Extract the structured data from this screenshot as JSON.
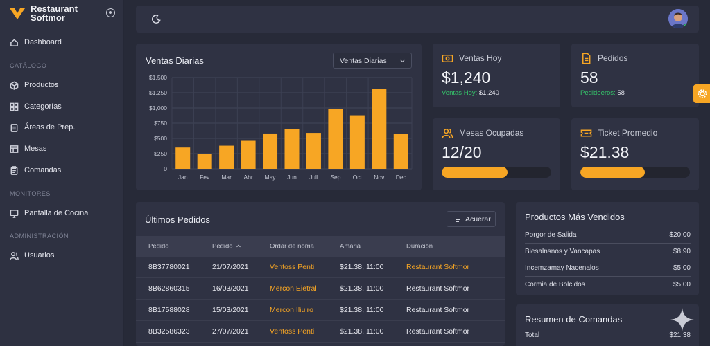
{
  "brand": {
    "line1": "Restaurant",
    "line2": "Softmor",
    "accent": "#f7a624"
  },
  "sidebar": {
    "dashboard": "Dashboard",
    "sections": {
      "catalogo": "CATÁLOGO",
      "monitores": "MONITORES",
      "administracion": "ADMINISTRACIÓN"
    },
    "items": [
      {
        "label": "Productos",
        "icon": "cube-icon"
      },
      {
        "label": "Categorías",
        "icon": "grid-icon"
      },
      {
        "label": "Áreas de Prep.",
        "icon": "clipboard-icon"
      },
      {
        "label": "Mesas",
        "icon": "table-icon"
      },
      {
        "label": "Comandas",
        "icon": "clipboard-list-icon"
      },
      {
        "label": "Pantalla de Cocina",
        "icon": "monitor-icon"
      },
      {
        "label": "Usuarios",
        "icon": "users-icon"
      }
    ]
  },
  "chart_card": {
    "title": "Ventas Diarias",
    "select_value": "Ventas Diarias"
  },
  "chart_data": {
    "type": "bar",
    "categories": [
      "Jan",
      "Fev",
      "Mar",
      "Abr",
      "May",
      "Jun",
      "Jull",
      "Sep",
      "Oct",
      "Nov",
      "Dec"
    ],
    "values": [
      350,
      240,
      380,
      460,
      580,
      650,
      590,
      980,
      880,
      1310,
      570
    ],
    "ylim": [
      0,
      1500
    ],
    "yticks": [
      "0",
      "$250",
      "$500",
      "$750",
      "$1,000",
      "$1,250",
      "$1,500"
    ],
    "grid": true,
    "bar_color": "#f7a624"
  },
  "stats": {
    "ventas": {
      "label": "Ventas Hoy",
      "value": "$1,240",
      "sub_label": "Ventas Hoy:",
      "sub_value": "$1,240"
    },
    "pedidos": {
      "label": "Pedidos",
      "value": "58",
      "sub_label": "Pedidoeros:",
      "sub_value": "58"
    },
    "mesas": {
      "label": "Mesas Ocupadas",
      "value": "12/20",
      "progress": 0.6
    },
    "ticket": {
      "label": "Ticket Promedio",
      "value": "$21.38",
      "progress": 0.59
    }
  },
  "orders": {
    "title": "Últimos Pedidos",
    "filter_label": "Acuerar",
    "headers": [
      "Pedido",
      "Pedido",
      "Ordar de noma",
      "Amaria",
      "Duración"
    ],
    "rows": [
      {
        "id": "8B37780021",
        "date": "21/07/2021",
        "name": "Ventoss Penti",
        "amount": "$21.38, 11:00",
        "dur": "Restaurant Softmor",
        "dur_orange": true
      },
      {
        "id": "8B62860315",
        "date": "16/03/2021",
        "name": "Mercon Eietral",
        "amount": "$21.38, 11:00",
        "dur": "Restaurant Softmor",
        "dur_orange": false
      },
      {
        "id": "8B17588028",
        "date": "15/03/2021",
        "name": "Mercon Iliuiro",
        "amount": "$21.38, 11:00",
        "dur": "Restaurant Softmor",
        "dur_orange": false
      },
      {
        "id": "8B32586323",
        "date": "27/07/2021",
        "name": "Ventoss Penti",
        "amount": "$21.38, 11:00",
        "dur": "Restaurant Softmor",
        "dur_orange": false
      }
    ]
  },
  "products": {
    "title": "Productos Más Vendidos",
    "items": [
      {
        "name": "Porgor de Salida",
        "price": "$20.00"
      },
      {
        "name": "Biesalnsnos y Vancapas",
        "price": "$8.90"
      },
      {
        "name": "Incemzamay Nacenalos",
        "price": "$5.00"
      },
      {
        "name": "Cormia de Bolcidos",
        "price": "$5.00"
      }
    ]
  },
  "summary": {
    "title": "Resumen de Comandas",
    "total_label": "Total",
    "total_value": "$21.38"
  }
}
